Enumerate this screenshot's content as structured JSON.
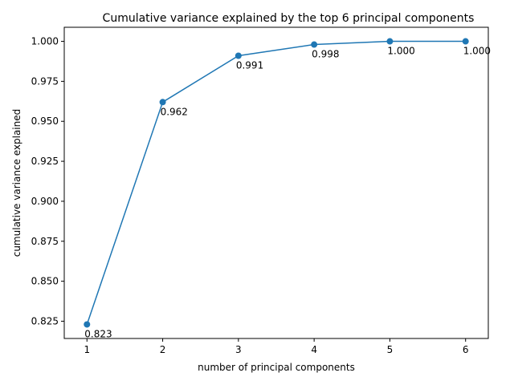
{
  "chart_data": {
    "type": "line",
    "title": "Cumulative variance explained by the top 6 principal components",
    "xlabel": "number of principal components",
    "ylabel": "cumulative variance explained",
    "x": [
      1,
      2,
      3,
      4,
      5,
      6
    ],
    "series": [
      {
        "values": [
          0.823,
          0.962,
          0.991,
          0.998,
          1.0,
          1.0
        ],
        "data_labels": [
          "0.823",
          "0.962",
          "0.991",
          "0.998",
          "1.000",
          "1.000"
        ],
        "color": "#1f77b4",
        "marker": "circle"
      }
    ],
    "xlim": [
      0.7,
      6.3
    ],
    "ylim": [
      0.8142,
      1.0088
    ],
    "xticks": [
      1,
      2,
      3,
      4,
      5,
      6
    ],
    "xtick_labels": [
      "1",
      "2",
      "3",
      "4",
      "5",
      "6"
    ],
    "yticks": [
      0.825,
      0.85,
      0.875,
      0.9,
      0.925,
      0.95,
      0.975,
      1.0
    ],
    "ytick_labels": [
      "0.825",
      "0.850",
      "0.875",
      "0.900",
      "0.925",
      "0.950",
      "0.975",
      "1.000"
    ],
    "grid": false,
    "legend": "none"
  }
}
